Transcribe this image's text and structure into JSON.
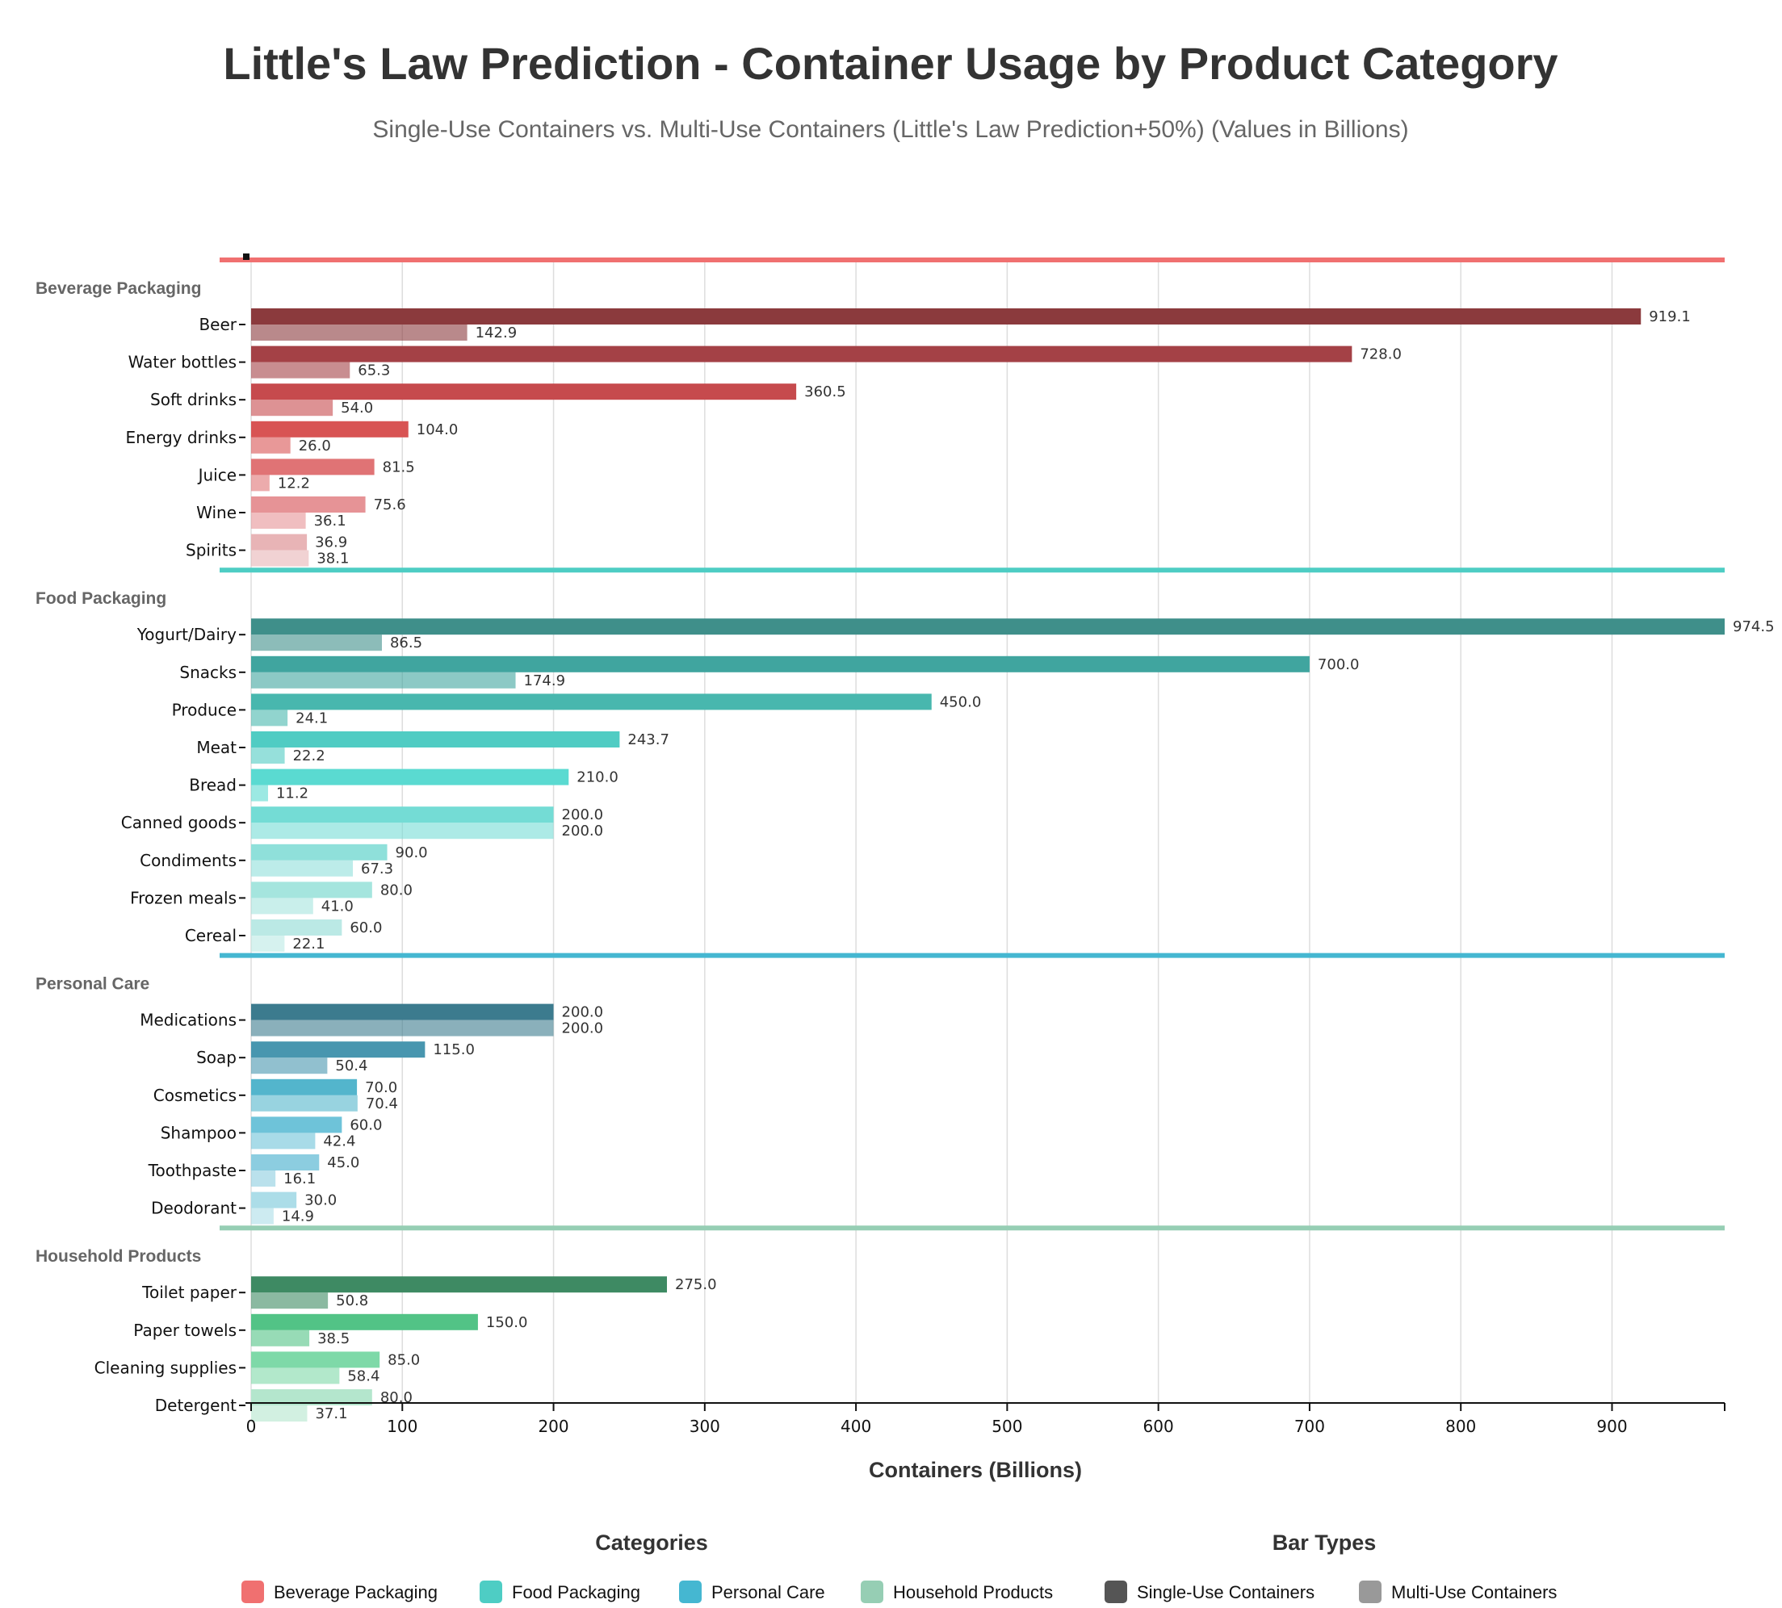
{
  "chart_data": {
    "type": "bar",
    "orientation": "horizontal",
    "title": "Little's Law Prediction - Container Usage by Product Category",
    "subtitle": "Single-Use Containers vs. Multi-Use Containers (Little's Law Prediction+50%) (Values in Billions)",
    "xlabel": "Containers (Billions)",
    "xlim": [
      0,
      974.5
    ],
    "xticks": [
      0,
      100,
      200,
      300,
      400,
      500,
      600,
      700,
      800,
      900
    ],
    "grid": true,
    "series_names": [
      "Single-Use Containers",
      "Multi-Use Containers"
    ],
    "groups": [
      {
        "name": "Beverage Packaging",
        "color": "#f07070",
        "items": [
          {
            "label": "Beer",
            "single": 919.1,
            "multi": 142.9
          },
          {
            "label": "Water bottles",
            "single": 728.0,
            "multi": 65.3
          },
          {
            "label": "Soft drinks",
            "single": 360.5,
            "multi": 54.0
          },
          {
            "label": "Energy drinks",
            "single": 104.0,
            "multi": 26.0
          },
          {
            "label": "Juice",
            "single": 81.5,
            "multi": 12.2
          },
          {
            "label": "Wine",
            "single": 75.6,
            "multi": 36.1
          },
          {
            "label": "Spirits",
            "single": 36.9,
            "multi": 38.1
          }
        ]
      },
      {
        "name": "Food Packaging",
        "color": "#4ecdc4",
        "items": [
          {
            "label": "Yogurt/Dairy",
            "single": 974.5,
            "multi": 86.5
          },
          {
            "label": "Snacks",
            "single": 700.0,
            "multi": 174.9
          },
          {
            "label": "Produce",
            "single": 450.0,
            "multi": 24.1
          },
          {
            "label": "Meat",
            "single": 243.7,
            "multi": 22.2
          },
          {
            "label": "Bread",
            "single": 210.0,
            "multi": 11.2
          },
          {
            "label": "Canned goods",
            "single": 200.0,
            "multi": 200.0
          },
          {
            "label": "Condiments",
            "single": 90.0,
            "multi": 67.3
          },
          {
            "label": "Frozen meals",
            "single": 80.0,
            "multi": 41.0
          },
          {
            "label": "Cereal",
            "single": 60.0,
            "multi": 22.1
          }
        ]
      },
      {
        "name": "Personal Care",
        "color": "#45b7d1",
        "items": [
          {
            "label": "Medications",
            "single": 200.0,
            "multi": 200.0
          },
          {
            "label": "Soap",
            "single": 115.0,
            "multi": 50.4
          },
          {
            "label": "Cosmetics",
            "single": 70.0,
            "multi": 70.4
          },
          {
            "label": "Shampoo",
            "single": 60.0,
            "multi": 42.4
          },
          {
            "label": "Toothpaste",
            "single": 45.0,
            "multi": 16.1
          },
          {
            "label": "Deodorant",
            "single": 30.0,
            "multi": 14.9
          }
        ]
      },
      {
        "name": "Household Products",
        "color": "#96ceb4",
        "items": [
          {
            "label": "Toilet paper",
            "single": 275.0,
            "multi": 50.8
          },
          {
            "label": "Paper towels",
            "single": 150.0,
            "multi": 38.5
          },
          {
            "label": "Cleaning supplies",
            "single": 85.0,
            "multi": 58.4
          },
          {
            "label": "Detergent",
            "single": 80.0,
            "multi": 37.1
          }
        ]
      }
    ],
    "legend": {
      "categories_title": "Categories",
      "bar_types_title": "Bar Types",
      "categories": [
        {
          "label": "Beverage Packaging",
          "color": "#f07070"
        },
        {
          "label": "Food Packaging",
          "color": "#4ecdc4"
        },
        {
          "label": "Personal Care",
          "color": "#45b7d1"
        },
        {
          "label": "Household Products",
          "color": "#96ceb4"
        }
      ],
      "bar_types": [
        {
          "label": "Single-Use Containers",
          "color": "#555555"
        },
        {
          "label": "Multi-Use Containers",
          "color": "#999999"
        }
      ],
      "placement": "bottom"
    },
    "colors": {
      "grid": "#dddddd",
      "axis": "#111111",
      "beverage_shades": [
        "#8b3a3d",
        "#a44146",
        "#c64a4d",
        "#d85454",
        "#e07375",
        "#e69396",
        "#e8b4b6"
      ],
      "food_shades": [
        "#3f8f8a",
        "#40a59f",
        "#48b7ae",
        "#50ccc3",
        "#5adad1",
        "#74dcd5",
        "#8fe0da",
        "#a5e5de",
        "#bbe9e5"
      ],
      "personal_shades": [
        "#3c7b8e",
        "#4896af",
        "#53b5cc",
        "#6ec3d9",
        "#8ccde0",
        "#acdde8"
      ],
      "household_shades": [
        "#3e8a63",
        "#52c386",
        "#7ed9a8",
        "#b4e6cd"
      ]
    }
  }
}
